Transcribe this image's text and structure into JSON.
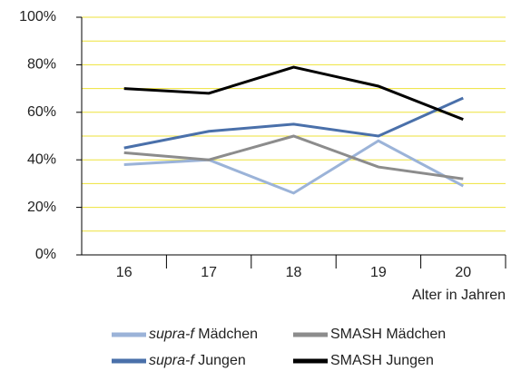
{
  "chart_data": {
    "type": "line",
    "categories": [
      "16",
      "17",
      "18",
      "19",
      "20"
    ],
    "x_label": "Alter in Jahren",
    "ylim": [
      0,
      100
    ],
    "yticks": [
      {
        "value": 0,
        "label": "0%"
      },
      {
        "value": 20,
        "label": "20%"
      },
      {
        "value": 40,
        "label": "40%"
      },
      {
        "value": 60,
        "label": "60%"
      },
      {
        "value": 80,
        "label": "80%"
      },
      {
        "value": 100,
        "label": "100%"
      }
    ],
    "minor_yticks": [
      10,
      30,
      50,
      70,
      90
    ],
    "grid": true,
    "grid_color": "#eee23a",
    "series": [
      {
        "name": "supra-f Mädchen",
        "color": "#9bb3d8",
        "values": [
          38,
          40,
          26,
          48,
          29
        ]
      },
      {
        "name": "SMASH Mädchen",
        "color": "#8c8c8c",
        "values": [
          43,
          40,
          50,
          37,
          32
        ]
      },
      {
        "name": "supra-f Jungen",
        "color": "#4a70aa",
        "values": [
          45,
          52,
          55,
          50,
          66
        ]
      },
      {
        "name": "SMASH Jungen",
        "color": "#000000",
        "values": [
          70,
          68,
          79,
          71,
          57
        ]
      }
    ]
  }
}
